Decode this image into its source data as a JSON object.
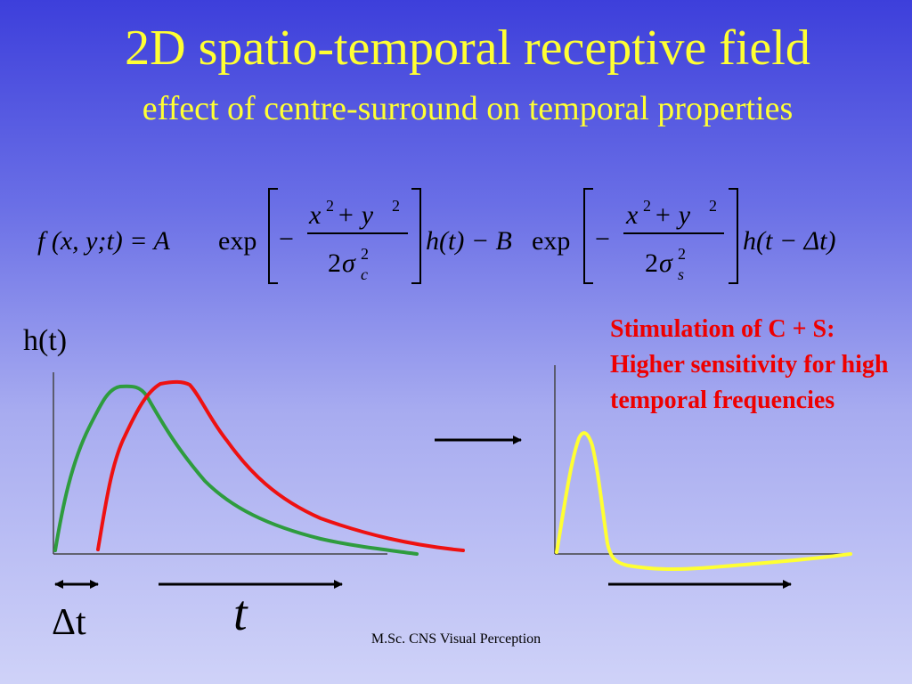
{
  "slide": {
    "title": "2D spatio-temporal receptive field",
    "subtitle": "effect of centre-surround on temporal properties",
    "footer": "M.Sc. CNS Visual Perception"
  },
  "formula": {
    "lhs": "f (x, y;t) = A",
    "exp": "exp",
    "minus": "−",
    "num_x": "x",
    "num_plus": " + y",
    "sup2": "2",
    "den_2": "2",
    "sigma": "σ",
    "sub_c": "c",
    "sub_s": "s",
    "h_t": "h(t) − B",
    "h_t_dt": "h(t − Δt)"
  },
  "plot": {
    "y_label": "h(t)",
    "delta_t_label": "Δt",
    "t_label": "t",
    "note": "Stimulation of C + S: Higher sensitivity for high temporal frequencies"
  },
  "colors": {
    "centre_curve": "#2e9c3e",
    "surround_curve": "#ee1111",
    "combined_curve": "#ffff33",
    "title": "#ffff33",
    "note": "#ee0000"
  }
}
